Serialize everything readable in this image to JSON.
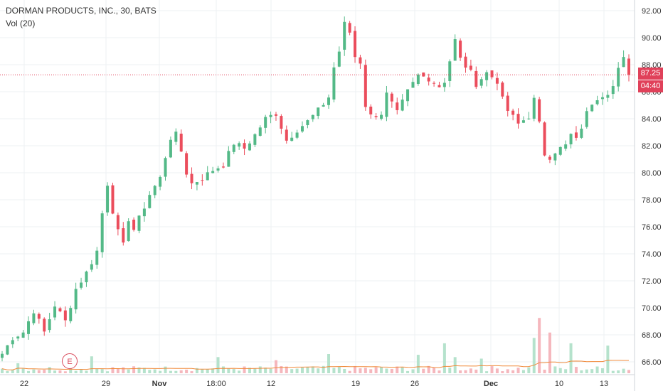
{
  "legend": {
    "title": "DORMAN PRODUCTS, INC., 30, BATS",
    "volume": "Vol (20)"
  },
  "earnings_badge": "E",
  "price_tag": {
    "price": "87.25",
    "countdown": "04:40"
  },
  "colors": {
    "up": "#53b987",
    "down": "#eb4d5c",
    "up_vol": "#b5e2cc",
    "down_vol": "#f5b7bd",
    "vol_ma": "#f08a3a",
    "price_line": "#e0415a",
    "grid": "#eef0f3",
    "axis_text": "#333333"
  },
  "chart_data": {
    "type": "candlestick",
    "title": "DORMAN PRODUCTS, INC., 30, BATS",
    "interval": "30",
    "y_ticks": [
      66,
      68,
      70,
      72,
      74,
      76,
      78,
      80,
      82,
      84,
      86,
      88,
      90,
      92
    ],
    "ylim": [
      65.4,
      92.4
    ],
    "x_ticks": [
      "22",
      "29",
      "Nov",
      "18:00",
      "12",
      "19",
      "26",
      "Dec",
      "10",
      "13"
    ],
    "last_price": 87.25,
    "grid": true,
    "close_path": [
      [
        0,
        66.6
      ],
      [
        2,
        67.8
      ],
      [
        4,
        68.2
      ],
      [
        6,
        69.8
      ],
      [
        8,
        68.2
      ],
      [
        10,
        70.2
      ],
      [
        12,
        69.0
      ],
      [
        14,
        71.4
      ],
      [
        16,
        72.6
      ],
      [
        18,
        74.2
      ],
      [
        19,
        77.0
      ],
      [
        20,
        79.2
      ],
      [
        21,
        77.2
      ],
      [
        22,
        75.6
      ],
      [
        23,
        74.6
      ],
      [
        24,
        76.6
      ],
      [
        25,
        75.8
      ],
      [
        26,
        76.6
      ],
      [
        28,
        78.4
      ],
      [
        30,
        79.6
      ],
      [
        31,
        81.2
      ],
      [
        32,
        82.6
      ],
      [
        33,
        82.8
      ],
      [
        34,
        81.6
      ],
      [
        35,
        80.0
      ],
      [
        36,
        79.2
      ],
      [
        38,
        79.6
      ],
      [
        40,
        80.2
      ],
      [
        42,
        80.6
      ],
      [
        44,
        82.2
      ],
      [
        46,
        81.8
      ],
      [
        48,
        82.8
      ],
      [
        50,
        84.0
      ],
      [
        52,
        84.4
      ],
      [
        54,
        82.4
      ],
      [
        56,
        83.2
      ],
      [
        58,
        83.8
      ],
      [
        60,
        84.6
      ],
      [
        62,
        85.6
      ],
      [
        63,
        87.8
      ],
      [
        64,
        89.0
      ],
      [
        65,
        91.0
      ],
      [
        66,
        90.4
      ],
      [
        67,
        88.6
      ],
      [
        68,
        88.2
      ],
      [
        69,
        85.0
      ],
      [
        70,
        84.2
      ],
      [
        72,
        84.4
      ],
      [
        73,
        85.8
      ],
      [
        75,
        84.4
      ],
      [
        77,
        86.0
      ],
      [
        79,
        87.2
      ],
      [
        81,
        87.0
      ],
      [
        83,
        86.4
      ],
      [
        84,
        86.8
      ],
      [
        86,
        89.8
      ],
      [
        87,
        88.4
      ],
      [
        89,
        87.4
      ],
      [
        90,
        86.6
      ],
      [
        92,
        87.4
      ],
      [
        94,
        86.8
      ],
      [
        95,
        85.4
      ],
      [
        96,
        84.6
      ],
      [
        98,
        83.6
      ],
      [
        100,
        84.2
      ],
      [
        101,
        85.4
      ],
      [
        102,
        83.6
      ],
      [
        103,
        81.4
      ],
      [
        104,
        81.2
      ],
      [
        105,
        81.6
      ],
      [
        107,
        82.0
      ],
      [
        108,
        82.8
      ],
      [
        109,
        82.4
      ],
      [
        110,
        83.4
      ],
      [
        111,
        84.4
      ],
      [
        112,
        85.2
      ],
      [
        113,
        85.6
      ],
      [
        114,
        85.8
      ],
      [
        115,
        86.0
      ],
      [
        116,
        86.4
      ],
      [
        117,
        87.6
      ],
      [
        118,
        88.4
      ],
      [
        119,
        87.25
      ]
    ],
    "volume_spikes": [
      {
        "bar": 3,
        "volume": 1.3
      },
      {
        "bar": 17,
        "volume": 2.2
      },
      {
        "bar": 41,
        "volume": 2.1
      },
      {
        "bar": 52,
        "volume": 1.7
      },
      {
        "bar": 62,
        "volume": 2.5
      },
      {
        "bar": 79,
        "volume": 2.4
      },
      {
        "bar": 84,
        "volume": 3.9
      },
      {
        "bar": 86,
        "volume": 2.1
      },
      {
        "bar": 91,
        "volume": 1.9
      },
      {
        "bar": 101,
        "volume": 4.6
      },
      {
        "bar": 102,
        "volume": 7.2
      },
      {
        "bar": 104,
        "volume": 5.3
      },
      {
        "bar": 108,
        "volume": 3.9
      },
      {
        "bar": 115,
        "volume": 3.6
      }
    ]
  }
}
